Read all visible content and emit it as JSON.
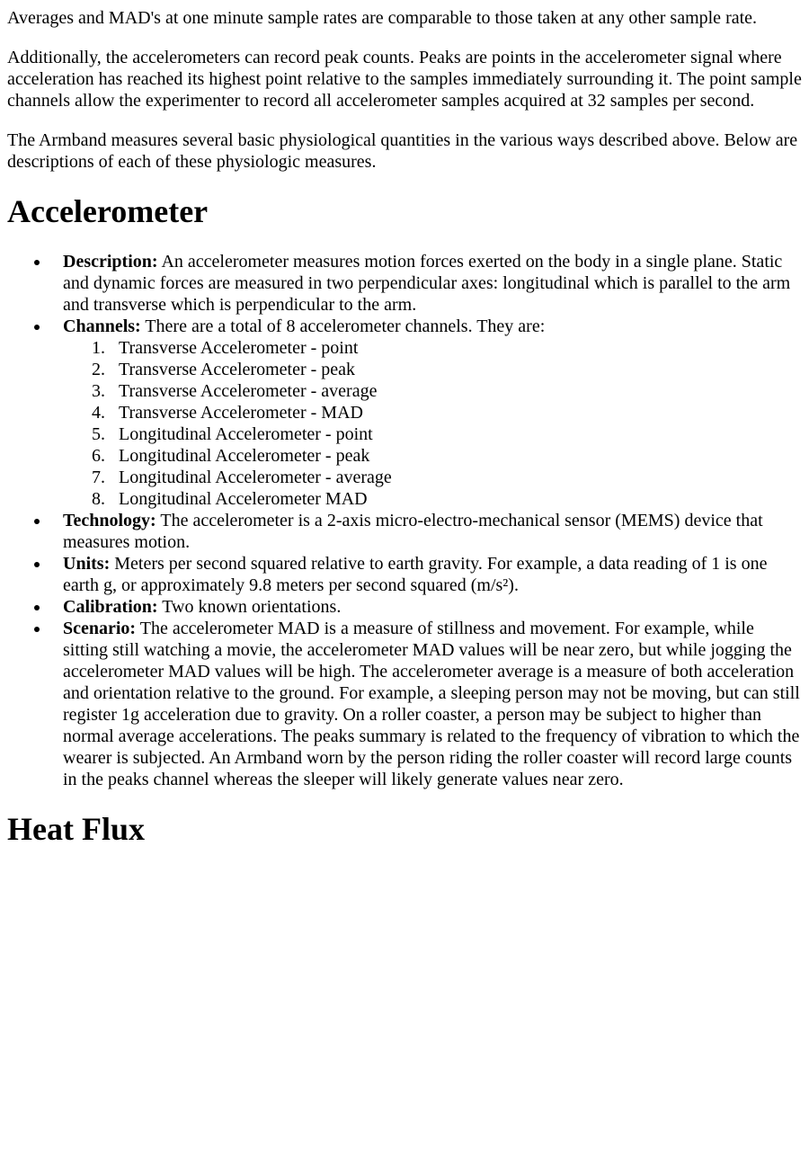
{
  "paragraphs": {
    "p1": "Averages and MAD's at one minute sample rates are comparable to those taken at any other sample rate.",
    "p2": "Additionally, the accelerometers can record peak counts. Peaks are points in the accelerometer signal where acceleration has reached its highest point relative to the samples immediately surrounding it. The point sample channels allow the experimenter to record all accelerometer samples acquired at 32 samples per second.",
    "p3": "The Armband measures several basic physiological quantities in the various ways described above. Below are descriptions of each of these physiologic measures."
  },
  "sections": {
    "accelerometer": {
      "heading": "Accelerometer",
      "description": {
        "label": "Description:",
        "text": " An accelerometer measures motion forces exerted on the body in a single plane. Static and dynamic forces are measured in two perpendicular axes: longitudinal which is parallel to the arm and transverse which is perpendicular to the arm."
      },
      "channels": {
        "label": "Channels:",
        "text": " There are a total of 8 accelerometer channels. They are:",
        "items": [
          "Transverse Accelerometer - point",
          "Transverse Accelerometer - peak",
          "Transverse Accelerometer - average",
          "Transverse Accelerometer - MAD",
          "Longitudinal Accelerometer - point",
          "Longitudinal Accelerometer - peak",
          "Longitudinal Accelerometer - average",
          "Longitudinal Accelerometer MAD"
        ]
      },
      "technology": {
        "label": "Technology:",
        "text": " The accelerometer is a 2-axis micro-electro-mechanical sensor (MEMS) device that measures motion."
      },
      "units": {
        "label": "Units:",
        "text": " Meters per second squared relative to earth gravity. For example, a data reading of 1 is one earth g, or approximately 9.8 meters per second squared (m/s²)."
      },
      "calibration": {
        "label": "Calibration:",
        "text": " Two known orientations."
      },
      "scenario": {
        "label": "Scenario:",
        "text": " The accelerometer MAD is a measure of stillness and movement. For example, while sitting still watching a movie, the accelerometer MAD values will be near zero, but while jogging the accelerometer MAD values will be high. The accelerometer average is a measure of both acceleration and orientation relative to the ground. For example, a sleeping person may not be moving, but can still register 1g acceleration due to gravity. On a roller coaster, a person may be subject to higher than normal average accelerations. The peaks summary is related to the frequency of vibration to which the wearer is subjected. An Armband worn by the person riding the roller coaster will record large counts in the peaks channel whereas the sleeper will likely generate values near zero."
      }
    },
    "heatflux": {
      "heading": "Heat Flux"
    }
  }
}
